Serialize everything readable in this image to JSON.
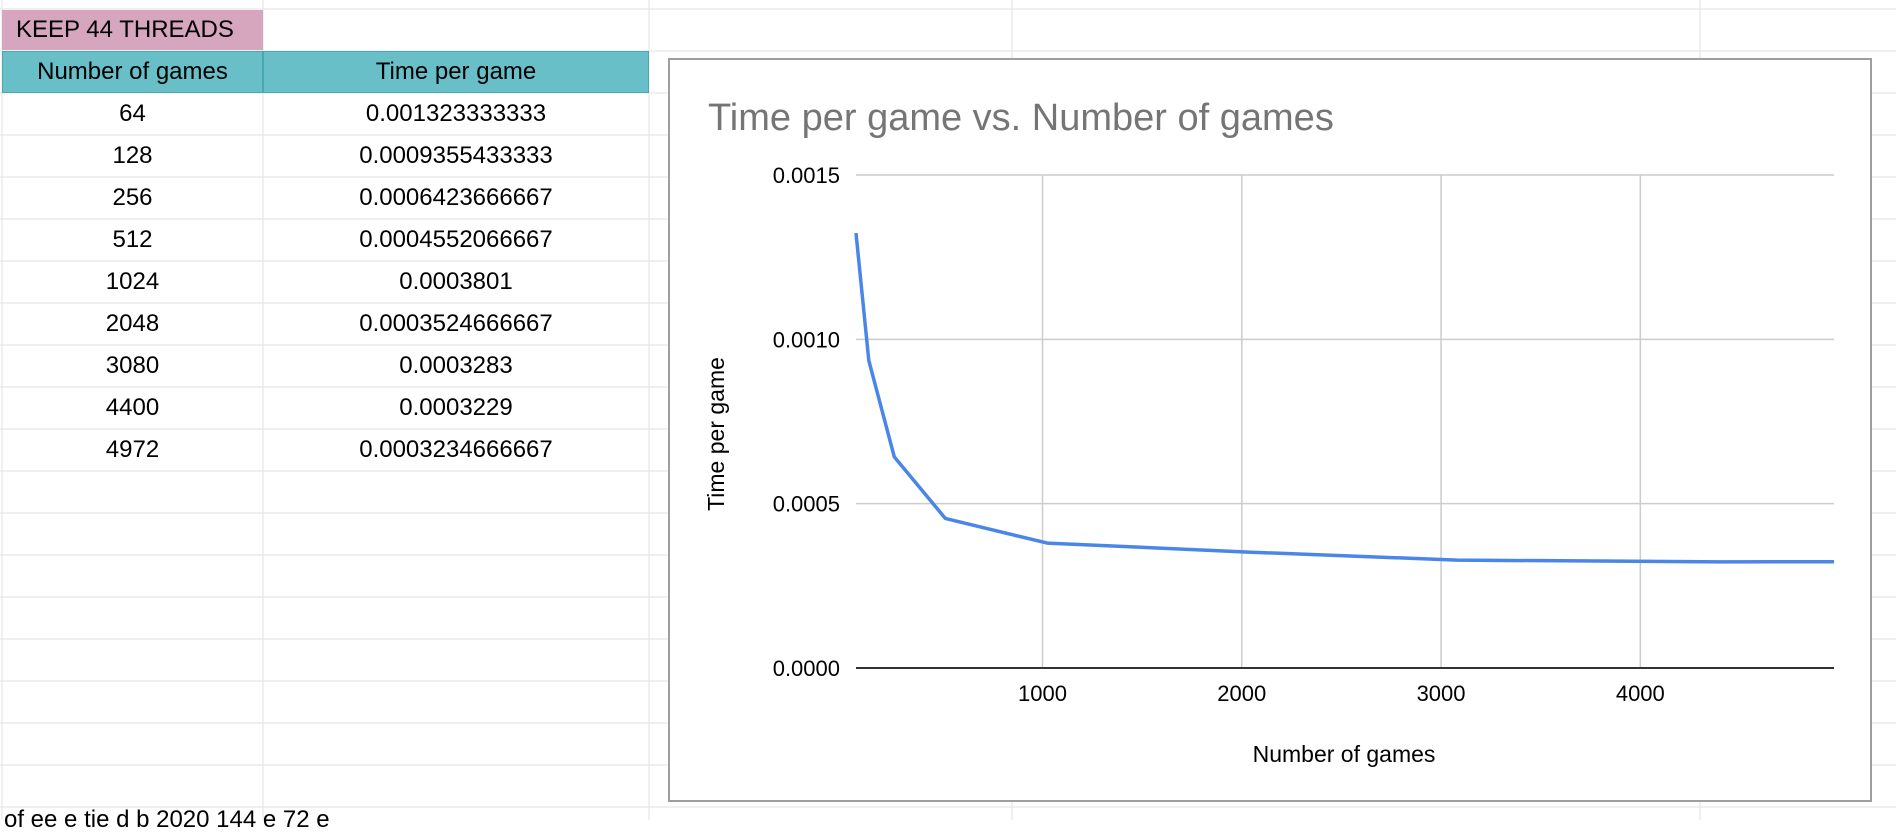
{
  "sheet": {
    "title_cell": "KEEP 44 THREADS",
    "headers": [
      "Number of games",
      "Time per game"
    ],
    "rows": [
      [
        "64",
        "0.001323333333"
      ],
      [
        "128",
        "0.0009355433333"
      ],
      [
        "256",
        "0.0006423666667"
      ],
      [
        "512",
        "0.0004552066667"
      ],
      [
        "1024",
        "0.0003801"
      ],
      [
        "2048",
        "0.0003524666667"
      ],
      [
        "3080",
        "0.0003283"
      ],
      [
        "4400",
        "0.0003229"
      ],
      [
        "4972",
        "0.0003234666667"
      ]
    ],
    "bottom_text": "of       ee      e  tie    d b  2020 144 e 72 e",
    "colors": {
      "title_cell_bg": "#d5a6bd",
      "header_bg": "#68bfc8",
      "gridline": "#e2e2e2"
    }
  },
  "chart_data": {
    "type": "line",
    "title": "Time per game vs. Number of games",
    "xlabel": "Number of games",
    "ylabel": "Time per game",
    "x": [
      64,
      128,
      256,
      512,
      1024,
      2048,
      3080,
      4400,
      4972
    ],
    "series": [
      {
        "name": "",
        "values": [
          0.001323333333,
          0.0009355433333,
          0.0006423666667,
          0.0004552066667,
          0.0003801,
          0.0003524666667,
          0.0003283,
          0.0003229,
          0.0003234666667
        ],
        "color": "#4a86e8"
      }
    ],
    "xlim": [
      64,
      4972
    ],
    "ylim": [
      0,
      0.0015
    ],
    "xticks": [
      1000,
      2000,
      3000,
      4000
    ],
    "yticks": [
      0,
      0.0005,
      0.001,
      0.0015
    ],
    "ytick_labels": [
      "0.0000",
      "0.0005",
      "0.0010",
      "0.0015"
    ],
    "grid": true,
    "legend": "none"
  }
}
